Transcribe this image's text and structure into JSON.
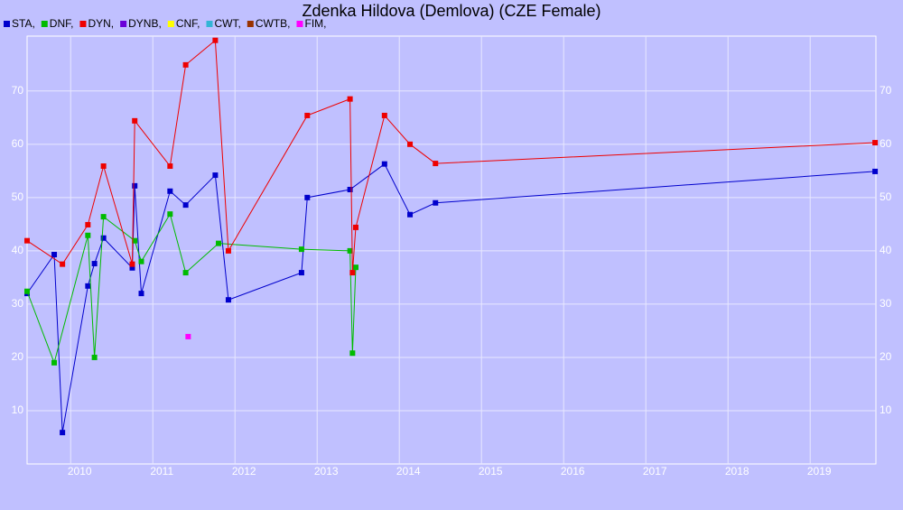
{
  "chart_data": {
    "type": "line",
    "title": "Zdenka Hildova (Demlova) (CZE Female)",
    "xlim": [
      2009.47,
      2019.8
    ],
    "ylim": [
      0,
      80.3
    ],
    "xticks": [
      2010,
      2011,
      2012,
      2013,
      2014,
      2015,
      2016,
      2017,
      2018,
      2019
    ],
    "yticks": [
      10,
      20,
      30,
      40,
      50,
      60,
      70
    ],
    "grid": true,
    "series": [
      {
        "name": "STA,",
        "color": "#0000cc",
        "x": [
          2009.47,
          2009.8,
          2009.9,
          2010.21,
          2010.29,
          2010.4,
          2010.75,
          2010.78,
          2010.86,
          2011.21,
          2011.4,
          2011.76,
          2011.92,
          2012.81,
          2012.88,
          2013.4,
          2013.82,
          2014.13,
          2014.44,
          2019.79
        ],
        "values": [
          32.0,
          39.3,
          5.9,
          33.4,
          37.6,
          42.4,
          36.8,
          52.2,
          32.0,
          51.2,
          48.6,
          54.2,
          30.8,
          35.9,
          50.0,
          51.5,
          56.3,
          46.8,
          49.0,
          54.9
        ]
      },
      {
        "name": "DNF,",
        "color": "#00bb00",
        "x": [
          2009.47,
          2009.8,
          2010.21,
          2010.29,
          2010.4,
          2010.78,
          2010.86,
          2011.21,
          2011.4,
          2011.8,
          2012.81,
          2013.4,
          2013.43,
          2013.47
        ],
        "values": [
          32.4,
          19.0,
          42.9,
          20.0,
          46.4,
          41.9,
          38.0,
          46.9,
          35.9,
          41.4,
          40.3,
          40.0,
          20.8,
          36.9
        ]
      },
      {
        "name": "DYN,",
        "color": "#ee0000",
        "x": [
          2009.47,
          2009.9,
          2010.21,
          2010.4,
          2010.75,
          2010.78,
          2011.21,
          2011.4,
          2011.76,
          2011.92,
          2012.88,
          2013.4,
          2013.43,
          2013.47,
          2013.82,
          2014.13,
          2014.44,
          2019.79
        ],
        "values": [
          41.9,
          37.5,
          44.9,
          55.9,
          37.5,
          64.4,
          55.9,
          74.9,
          79.5,
          40.0,
          65.4,
          68.5,
          35.9,
          44.4,
          65.4,
          60.0,
          56.4,
          60.3
        ]
      },
      {
        "name": "DYNB,",
        "color": "#6a00d8",
        "x": [],
        "values": []
      },
      {
        "name": "CNF,",
        "color": "#ffff00",
        "x": [],
        "values": []
      },
      {
        "name": "CWT,",
        "color": "#33b5d5",
        "x": [],
        "values": []
      },
      {
        "name": "CWTB,",
        "color": "#993300",
        "x": [],
        "values": []
      },
      {
        "name": "FIM,",
        "color": "#ff00ff",
        "x": [
          2011.43
        ],
        "values": [
          23.9
        ]
      }
    ]
  }
}
